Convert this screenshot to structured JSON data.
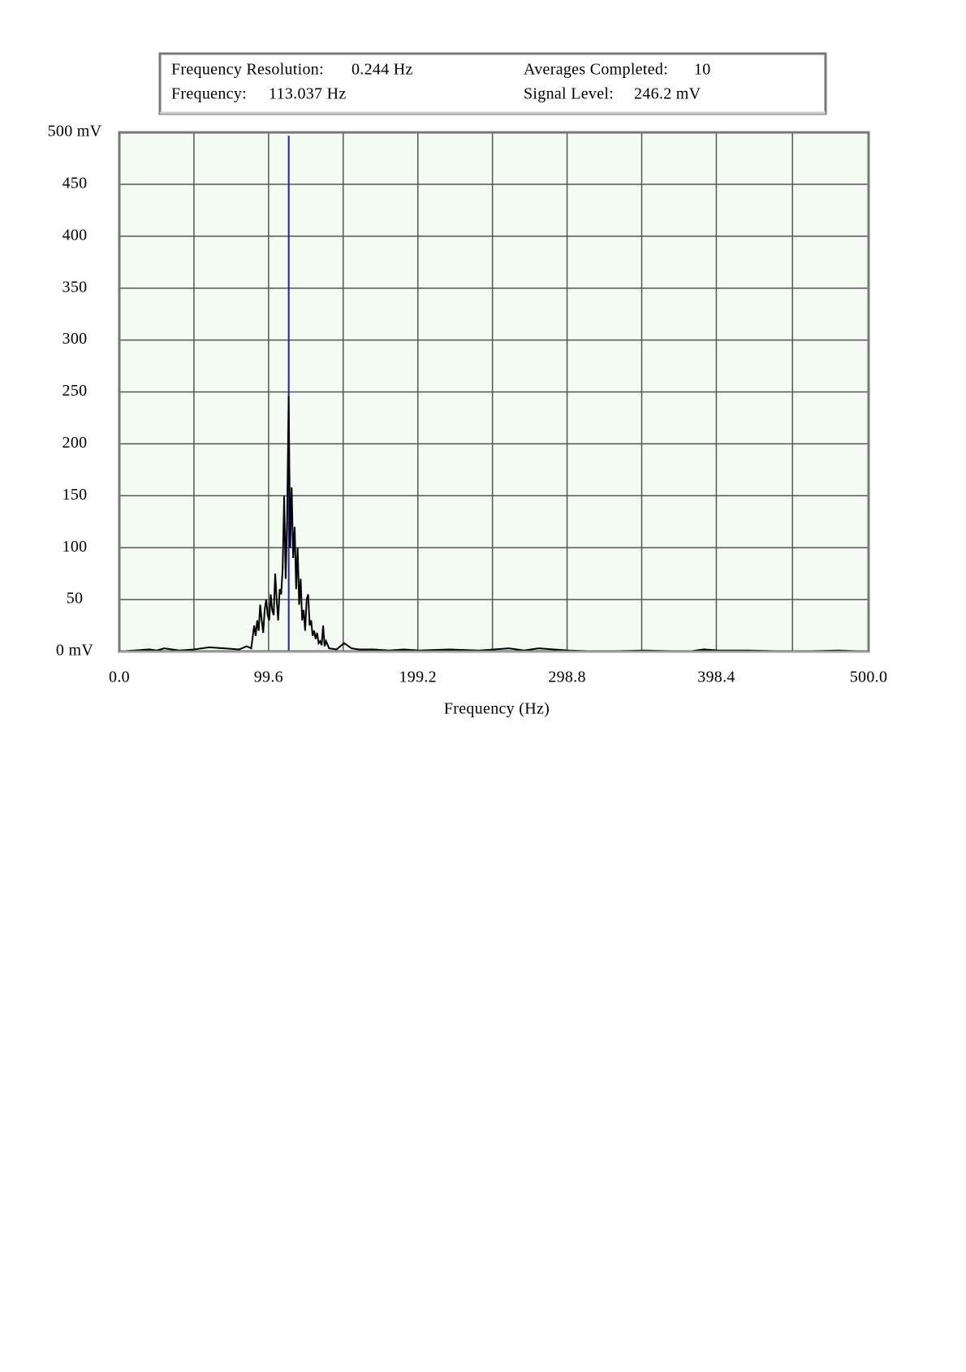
{
  "header": {
    "rows": [
      [
        {
          "label": "Frequency Resolution:",
          "value": "0.244 Hz"
        },
        {
          "label": "Averages Completed:",
          "value": "10"
        }
      ],
      [
        {
          "label": "Frequency:",
          "value": "113.037 Hz"
        },
        {
          "label": "Signal Level:",
          "value": "246.2 mV"
        }
      ]
    ]
  },
  "chart_data": {
    "type": "line",
    "x_label": "Frequency (Hz)",
    "color": "#000000",
    "cursor": 113.037,
    "cursor_color": "#2020c0",
    "background": "#f4fbf3",
    "grid": true,
    "x": [
      0,
      10,
      20,
      25,
      30,
      40,
      50,
      60,
      70,
      80,
      85,
      88,
      90,
      91,
      92,
      93,
      94,
      95,
      96,
      97,
      98,
      99,
      100,
      101,
      102,
      103,
      104,
      105,
      106,
      107,
      108,
      109,
      110,
      111,
      112,
      113,
      114,
      115,
      116,
      117,
      118,
      119,
      120,
      121,
      122,
      123,
      124,
      125,
      126,
      127,
      128,
      129,
      130,
      131,
      132,
      133,
      134,
      135,
      136,
      137,
      138,
      140,
      145,
      150,
      155,
      160,
      170,
      180,
      190,
      200,
      220,
      240,
      250,
      260,
      270,
      280,
      290,
      300,
      320,
      350,
      380,
      390,
      400,
      420,
      450,
      480,
      500
    ],
    "values": [
      0,
      1,
      2,
      1,
      3,
      1,
      2,
      4,
      3,
      2,
      5,
      3,
      25,
      15,
      30,
      20,
      45,
      30,
      18,
      40,
      50,
      35,
      30,
      55,
      40,
      35,
      75,
      50,
      30,
      60,
      55,
      80,
      150,
      70,
      130,
      246.2,
      100,
      158,
      90,
      120,
      60,
      100,
      45,
      70,
      30,
      40,
      20,
      50,
      55,
      25,
      30,
      15,
      20,
      12,
      18,
      8,
      10,
      6,
      25,
      5,
      10,
      3,
      2,
      8,
      3,
      2,
      2,
      1,
      2,
      1,
      2,
      1,
      2,
      3,
      1,
      3,
      2,
      1,
      0,
      1,
      0,
      2,
      1,
      1,
      0,
      1,
      0
    ],
    "xlim": [
      0,
      500
    ],
    "xticks": [
      {
        "value": 0,
        "label": "0.0"
      },
      99.6,
      199.2,
      298.8,
      398.4,
      {
        "value": 500,
        "label": "500.0"
      }
    ],
    "ylim": [
      0,
      500
    ],
    "yticks": [
      {
        "value": 0,
        "label": "0 mV"
      },
      50,
      100,
      150,
      200,
      250,
      300,
      350,
      400,
      450,
      {
        "value": 500,
        "label": "500 mV"
      }
    ]
  }
}
